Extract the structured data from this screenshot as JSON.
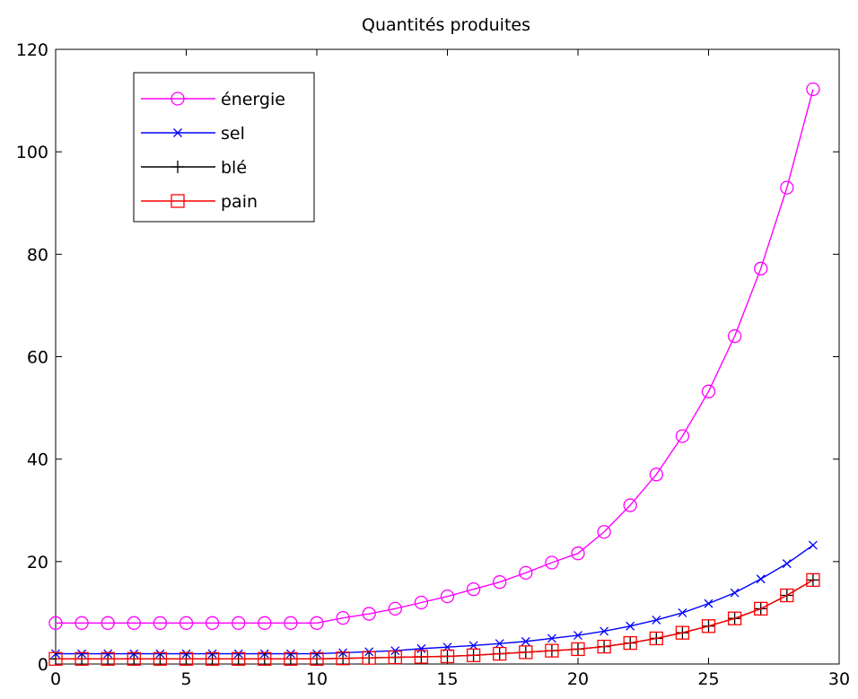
{
  "chart_data": {
    "type": "line",
    "title": "Quantités produites",
    "xlabel": "",
    "ylabel": "",
    "xlim": [
      0,
      30
    ],
    "ylim": [
      0,
      120
    ],
    "x_ticks": [
      0,
      5,
      10,
      15,
      20,
      25,
      30
    ],
    "y_ticks": [
      0,
      20,
      40,
      60,
      80,
      100,
      120
    ],
    "grid": false,
    "legend_position": "top-left",
    "x": [
      0,
      1,
      2,
      3,
      4,
      5,
      6,
      7,
      8,
      9,
      10,
      11,
      12,
      13,
      14,
      15,
      16,
      17,
      18,
      19,
      20,
      21,
      22,
      23,
      24,
      25,
      26,
      27,
      28,
      29
    ],
    "series": [
      {
        "name": "énergie",
        "color": "#ff00ff",
        "marker": "circle",
        "values": [
          8,
          8,
          8,
          8,
          8,
          8,
          8,
          8,
          8,
          8,
          8,
          9,
          9.8,
          10.8,
          12,
          13.2,
          14.6,
          16,
          17.8,
          19.8,
          21.6,
          25.8,
          31,
          37,
          44.5,
          53.2,
          64,
          77.2,
          93,
          112.2
        ]
      },
      {
        "name": "sel",
        "color": "#0000ff",
        "marker": "x",
        "values": [
          2,
          2,
          2,
          2,
          2,
          2,
          2,
          2,
          2,
          2,
          2,
          2.2,
          2.4,
          2.6,
          3,
          3.3,
          3.6,
          4,
          4.4,
          5,
          5.6,
          6.4,
          7.4,
          8.6,
          10,
          11.8,
          13.9,
          16.6,
          19.6,
          23.2
        ]
      },
      {
        "name": "blé",
        "color": "#000000",
        "marker": "plus",
        "values": [
          1,
          1,
          1,
          1,
          1,
          1,
          1,
          1,
          1,
          1,
          1,
          1.1,
          1.2,
          1.3,
          1.4,
          1.5,
          1.7,
          2,
          2.3,
          2.6,
          2.9,
          3.4,
          4.1,
          5,
          6.1,
          7.4,
          8.9,
          10.8,
          13.4,
          16.4
        ]
      },
      {
        "name": "pain",
        "color": "#ff0000",
        "marker": "square",
        "values": [
          1,
          1,
          1,
          1,
          1,
          1,
          1,
          1,
          1,
          1,
          1,
          1.1,
          1.2,
          1.3,
          1.4,
          1.5,
          1.7,
          2,
          2.3,
          2.6,
          2.9,
          3.4,
          4.1,
          5,
          6.1,
          7.4,
          8.9,
          10.8,
          13.4,
          16.4
        ]
      }
    ]
  }
}
